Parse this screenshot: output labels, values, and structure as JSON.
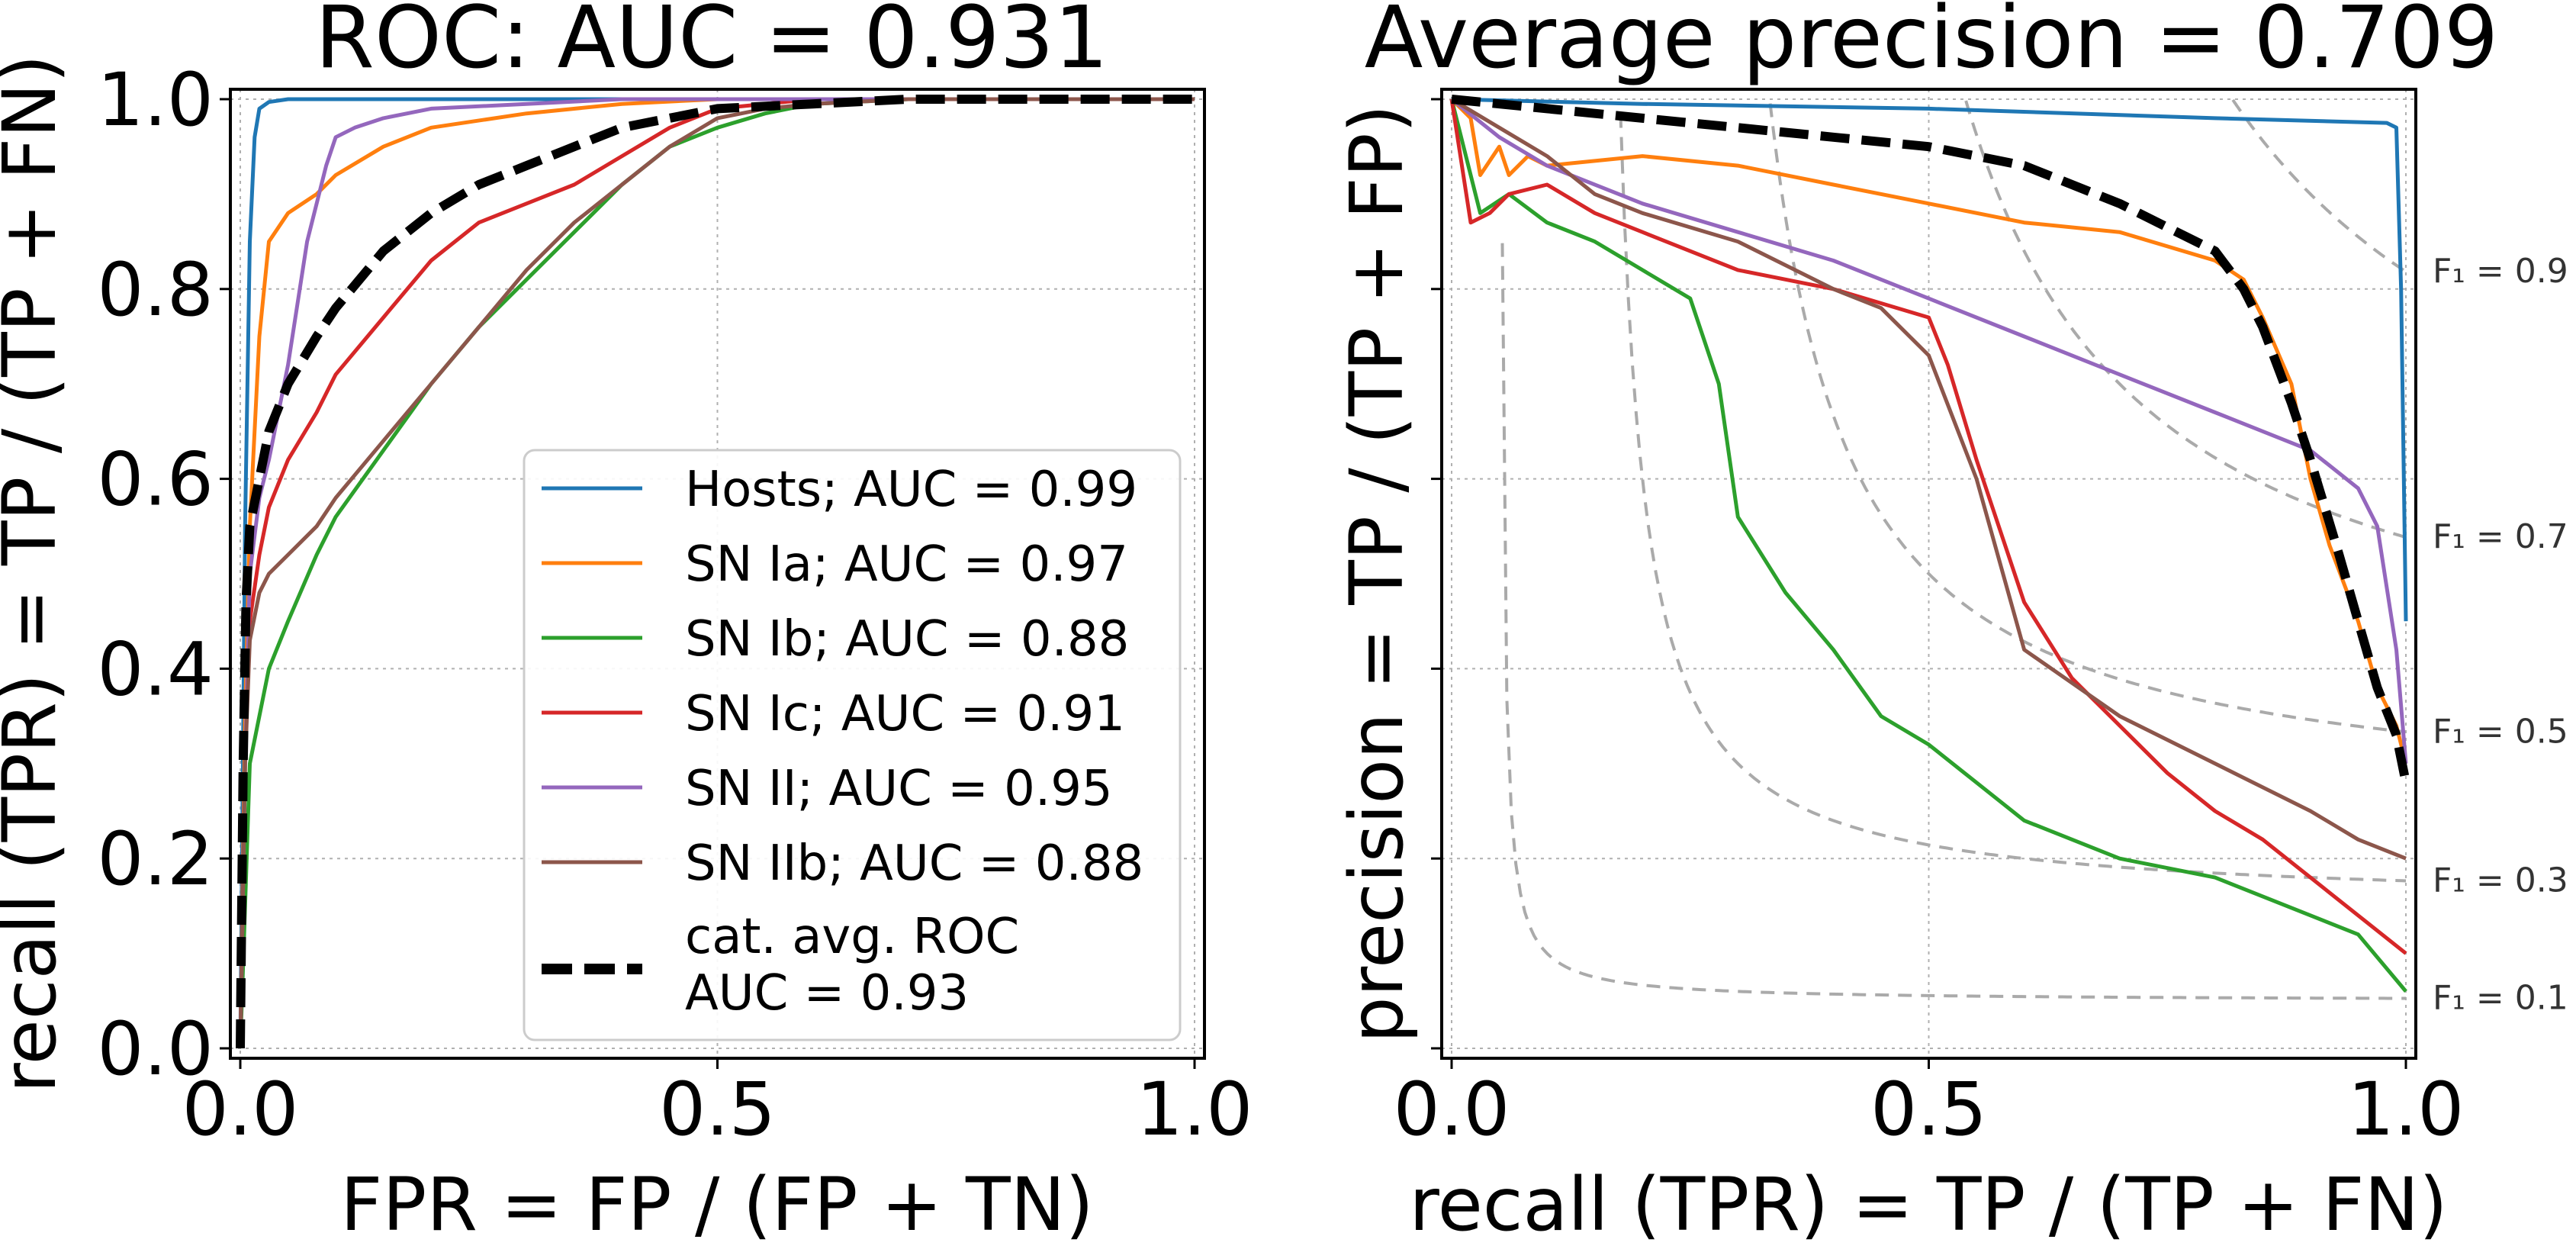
{
  "colors": {
    "hosts": "#1f77b4",
    "sn_ia": "#ff7f0e",
    "sn_ib": "#2ca02c",
    "sn_ic": "#d62728",
    "sn_ii": "#9467bd",
    "sn_iib": "#8c564b",
    "avg": "#000000",
    "iso_f1": "#aaaaaa",
    "grid": "#b0b0b0"
  },
  "chart_data": [
    {
      "type": "line",
      "title": "ROC: AUC = 0.931",
      "xlabel": "FPR = FP / (FP + TN)",
      "ylabel": "recall (TPR) = TP / (TP + FN)",
      "xlim": [
        0.0,
        1.0
      ],
      "ylim": [
        0.0,
        1.0
      ],
      "xticks": [
        "0.0",
        "0.5",
        "1.0"
      ],
      "yticks": [
        "0.0",
        "0.2",
        "0.4",
        "0.6",
        "0.8",
        "1.0"
      ],
      "grid": true,
      "legend_position": "lower-right",
      "series": [
        {
          "name": "Hosts; AUC = 0.99",
          "color_key": "hosts",
          "dashed": false,
          "x": [
            0,
            0.005,
            0.01,
            0.015,
            0.02,
            0.03,
            0.05,
            0.1,
            0.5,
            1.0
          ],
          "y": [
            0,
            0.55,
            0.85,
            0.96,
            0.99,
            0.997,
            1.0,
            1.0,
            1.0,
            1.0
          ]
        },
        {
          "name": "SN Ia; AUC = 0.97",
          "color_key": "sn_ia",
          "dashed": false,
          "x": [
            0,
            0.005,
            0.01,
            0.02,
            0.03,
            0.05,
            0.08,
            0.1,
            0.15,
            0.2,
            0.3,
            0.4,
            0.5,
            0.6,
            1.0
          ],
          "y": [
            0,
            0.35,
            0.55,
            0.75,
            0.85,
            0.88,
            0.9,
            0.92,
            0.95,
            0.97,
            0.985,
            0.995,
            1.0,
            1.0,
            1.0
          ]
        },
        {
          "name": "SN Ib; AUC = 0.88",
          "color_key": "sn_ib",
          "dashed": false,
          "x": [
            0,
            0.005,
            0.01,
            0.02,
            0.03,
            0.05,
            0.08,
            0.1,
            0.15,
            0.2,
            0.25,
            0.3,
            0.35,
            0.4,
            0.45,
            0.5,
            0.55,
            0.6,
            0.7,
            1.0
          ],
          "y": [
            0,
            0.15,
            0.3,
            0.35,
            0.4,
            0.45,
            0.52,
            0.56,
            0.63,
            0.7,
            0.76,
            0.81,
            0.86,
            0.91,
            0.95,
            0.97,
            0.985,
            0.995,
            1.0,
            1.0
          ]
        },
        {
          "name": "SN Ic; AUC = 0.91",
          "color_key": "sn_ic",
          "dashed": false,
          "x": [
            0,
            0.005,
            0.01,
            0.02,
            0.03,
            0.05,
            0.08,
            0.1,
            0.15,
            0.2,
            0.25,
            0.3,
            0.35,
            0.4,
            0.45,
            0.5,
            0.55,
            0.6,
            1.0
          ],
          "y": [
            0,
            0.3,
            0.45,
            0.52,
            0.57,
            0.62,
            0.67,
            0.71,
            0.77,
            0.83,
            0.87,
            0.89,
            0.91,
            0.94,
            0.97,
            0.99,
            0.995,
            1.0,
            1.0
          ]
        },
        {
          "name": "SN II; AUC = 0.95",
          "color_key": "sn_ii",
          "dashed": false,
          "x": [
            0,
            0.005,
            0.01,
            0.02,
            0.03,
            0.05,
            0.07,
            0.09,
            0.1,
            0.12,
            0.15,
            0.2,
            0.3,
            0.4,
            0.5,
            1.0
          ],
          "y": [
            0,
            0.3,
            0.5,
            0.58,
            0.62,
            0.72,
            0.85,
            0.93,
            0.96,
            0.97,
            0.98,
            0.99,
            0.995,
            1.0,
            1.0,
            1.0
          ]
        },
        {
          "name": "SN IIb; AUC = 0.88",
          "color_key": "sn_iib",
          "dashed": false,
          "x": [
            0,
            0.005,
            0.01,
            0.02,
            0.03,
            0.05,
            0.08,
            0.1,
            0.15,
            0.2,
            0.25,
            0.3,
            0.35,
            0.4,
            0.45,
            0.5,
            0.55,
            0.6,
            0.7,
            1.0
          ],
          "y": [
            0,
            0.3,
            0.43,
            0.48,
            0.5,
            0.52,
            0.55,
            0.58,
            0.64,
            0.7,
            0.76,
            0.82,
            0.87,
            0.91,
            0.95,
            0.98,
            0.99,
            0.995,
            1.0,
            1.0
          ]
        },
        {
          "name": "cat. avg. ROC\nAUC = 0.93",
          "color_key": "avg",
          "dashed": true,
          "x": [
            0,
            0.003,
            0.006,
            0.01,
            0.02,
            0.03,
            0.05,
            0.08,
            0.1,
            0.15,
            0.2,
            0.25,
            0.3,
            0.35,
            0.4,
            0.5,
            0.6,
            0.7,
            1.0
          ],
          "y": [
            0,
            0.3,
            0.47,
            0.55,
            0.6,
            0.65,
            0.7,
            0.75,
            0.78,
            0.84,
            0.88,
            0.91,
            0.93,
            0.95,
            0.97,
            0.99,
            0.995,
            1.0,
            1.0
          ]
        }
      ]
    },
    {
      "type": "line",
      "title": "Average precision = 0.709",
      "xlabel": "recall (TPR) = TP / (TP + FN)",
      "ylabel": "precision = TP / (TP + FP)",
      "xlim": [
        0.0,
        1.0
      ],
      "ylim": [
        0.0,
        1.0
      ],
      "xticks": [
        "0.0",
        "0.5",
        "1.0"
      ],
      "grid": true,
      "iso_f1": [
        {
          "f": 0.9,
          "label": "F₁ = 0.9"
        },
        {
          "f": 0.7,
          "label": "F₁ = 0.7"
        },
        {
          "f": 0.5,
          "label": "F₁ = 0.5"
        },
        {
          "f": 0.3,
          "label": "F₁ = 0.3"
        },
        {
          "f": 0.1,
          "label": "F₁ = 0.1"
        }
      ],
      "series": [
        {
          "color_key": "hosts",
          "dashed": false,
          "x": [
            0,
            0.2,
            0.5,
            0.8,
            0.98,
            0.99,
            0.995,
            1.0
          ],
          "y": [
            1.0,
            0.995,
            0.99,
            0.98,
            0.975,
            0.97,
            0.8,
            0.45
          ]
        },
        {
          "color_key": "sn_ia",
          "dashed": false,
          "x": [
            0,
            0.02,
            0.03,
            0.05,
            0.06,
            0.08,
            0.1,
            0.2,
            0.3,
            0.4,
            0.5,
            0.6,
            0.7,
            0.8,
            0.83,
            0.85,
            0.88,
            0.9,
            0.92,
            0.95,
            0.97,
            0.99,
            1.0
          ],
          "y": [
            1.0,
            0.98,
            0.92,
            0.95,
            0.92,
            0.94,
            0.93,
            0.94,
            0.93,
            0.91,
            0.89,
            0.87,
            0.86,
            0.83,
            0.81,
            0.77,
            0.7,
            0.6,
            0.53,
            0.45,
            0.38,
            0.34,
            0.3
          ]
        },
        {
          "color_key": "sn_ib",
          "dashed": false,
          "x": [
            0,
            0.03,
            0.06,
            0.1,
            0.15,
            0.2,
            0.25,
            0.28,
            0.3,
            0.35,
            0.4,
            0.45,
            0.5,
            0.55,
            0.6,
            0.7,
            0.8,
            0.9,
            0.95,
            1.0
          ],
          "y": [
            1.0,
            0.88,
            0.9,
            0.87,
            0.85,
            0.82,
            0.79,
            0.7,
            0.56,
            0.48,
            0.42,
            0.35,
            0.32,
            0.28,
            0.24,
            0.2,
            0.18,
            0.14,
            0.12,
            0.06
          ]
        },
        {
          "color_key": "sn_ic",
          "dashed": false,
          "x": [
            0,
            0.02,
            0.04,
            0.06,
            0.1,
            0.15,
            0.2,
            0.3,
            0.4,
            0.5,
            0.52,
            0.55,
            0.6,
            0.65,
            0.7,
            0.75,
            0.8,
            0.85,
            0.9,
            0.95,
            1.0
          ],
          "y": [
            1.0,
            0.87,
            0.88,
            0.9,
            0.91,
            0.88,
            0.86,
            0.82,
            0.8,
            0.77,
            0.72,
            0.62,
            0.47,
            0.39,
            0.34,
            0.29,
            0.25,
            0.22,
            0.18,
            0.14,
            0.1
          ]
        },
        {
          "color_key": "sn_ii",
          "dashed": false,
          "x": [
            0,
            0.05,
            0.1,
            0.2,
            0.3,
            0.4,
            0.5,
            0.6,
            0.7,
            0.8,
            0.9,
            0.95,
            0.97,
            0.99,
            1.0
          ],
          "y": [
            1.0,
            0.96,
            0.93,
            0.89,
            0.86,
            0.83,
            0.79,
            0.75,
            0.71,
            0.67,
            0.63,
            0.59,
            0.55,
            0.42,
            0.3
          ]
        },
        {
          "color_key": "sn_iib",
          "dashed": false,
          "x": [
            0,
            0.05,
            0.1,
            0.15,
            0.2,
            0.3,
            0.4,
            0.45,
            0.5,
            0.55,
            0.6,
            0.7,
            0.8,
            0.9,
            0.95,
            1.0
          ],
          "y": [
            1.0,
            0.97,
            0.94,
            0.9,
            0.88,
            0.85,
            0.8,
            0.78,
            0.73,
            0.6,
            0.42,
            0.35,
            0.3,
            0.25,
            0.22,
            0.2
          ]
        },
        {
          "color_key": "avg",
          "dashed": true,
          "x": [
            0,
            0.1,
            0.2,
            0.3,
            0.4,
            0.5,
            0.6,
            0.7,
            0.8,
            0.83,
            0.85,
            0.88,
            0.9,
            0.93,
            0.95,
            0.97,
            0.99,
            1.0
          ],
          "y": [
            1.0,
            0.99,
            0.98,
            0.97,
            0.96,
            0.95,
            0.93,
            0.89,
            0.84,
            0.8,
            0.76,
            0.68,
            0.62,
            0.52,
            0.45,
            0.38,
            0.33,
            0.28
          ]
        }
      ]
    }
  ]
}
